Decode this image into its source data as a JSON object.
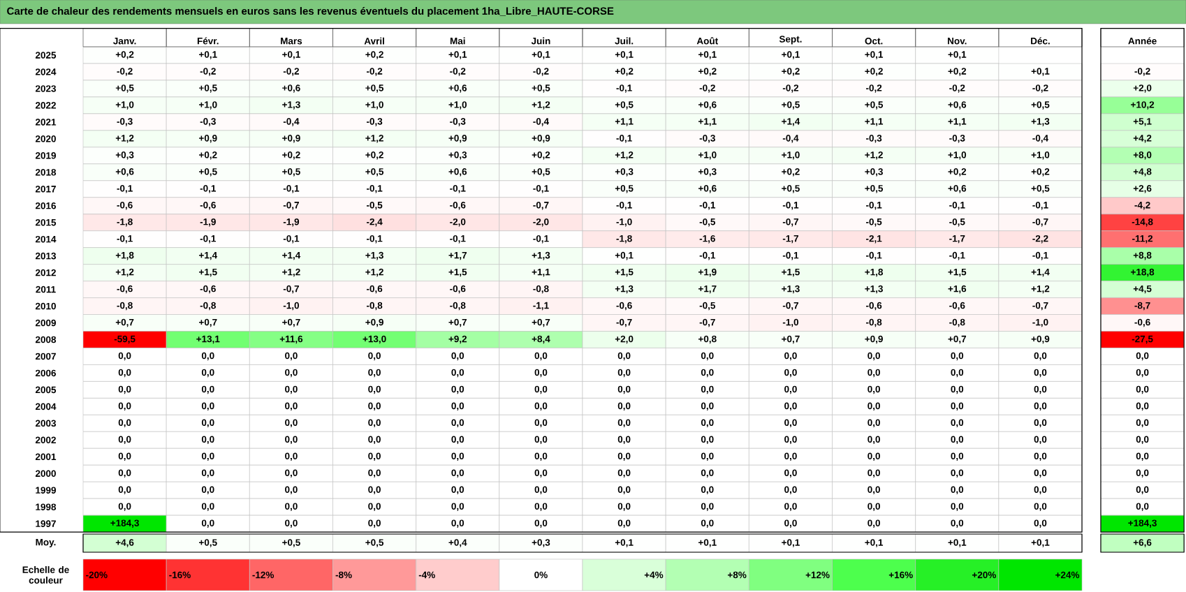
{
  "chart_data": [
    {
      "type": "heatmap",
      "title": "Carte de chaleur des rendements mensuels en euros sans les revenus éventuels du placement 1ha_Libre_HAUTE-CORSE",
      "categories": [
        "Janv.",
        "Févr.",
        "Mars",
        "Avril",
        "Mai",
        "Juin",
        "Juil.",
        "Août",
        "Sept.",
        "Oct.",
        "Nov.",
        "Déc.",
        "Année"
      ],
      "y_categories": [
        "2025",
        "2024",
        "2023",
        "2022",
        "2021",
        "2020",
        "2019",
        "2018",
        "2017",
        "2016",
        "2015",
        "2014",
        "2013",
        "2012",
        "2011",
        "2010",
        "2009",
        "2008",
        "2007",
        "2006",
        "2005",
        "2004",
        "2003",
        "2002",
        "2001",
        "2000",
        "1999",
        "1998",
        "1997"
      ],
      "cells": [
        [
          0.2,
          0.1,
          0.1,
          0.2,
          0.1,
          0.1,
          0.1,
          0.1,
          0.1,
          0.1,
          0.1,
          null,
          null
        ],
        [
          -0.2,
          -0.2,
          -0.2,
          -0.2,
          -0.2,
          -0.2,
          0.2,
          0.2,
          0.2,
          0.2,
          0.2,
          0.1,
          -0.2
        ],
        [
          0.5,
          0.5,
          0.6,
          0.5,
          0.6,
          0.5,
          -0.1,
          -0.2,
          -0.2,
          -0.2,
          -0.2,
          -0.2,
          2.0
        ],
        [
          1.0,
          1.0,
          1.3,
          1.0,
          1.0,
          1.2,
          0.5,
          0.6,
          0.5,
          0.5,
          0.6,
          0.5,
          10.2
        ],
        [
          -0.3,
          -0.3,
          -0.4,
          -0.3,
          -0.3,
          -0.4,
          1.1,
          1.1,
          1.4,
          1.1,
          1.1,
          1.3,
          5.1
        ],
        [
          1.2,
          0.9,
          0.9,
          1.2,
          0.9,
          0.9,
          -0.1,
          -0.3,
          -0.4,
          -0.3,
          -0.3,
          -0.4,
          4.2
        ],
        [
          0.3,
          0.2,
          0.2,
          0.2,
          0.3,
          0.2,
          1.2,
          1.0,
          1.0,
          1.2,
          1.0,
          1.0,
          8.0
        ],
        [
          0.6,
          0.5,
          0.5,
          0.5,
          0.6,
          0.5,
          0.3,
          0.3,
          0.2,
          0.3,
          0.2,
          0.2,
          4.8
        ],
        [
          -0.1,
          -0.1,
          -0.1,
          -0.1,
          -0.1,
          -0.1,
          0.5,
          0.6,
          0.5,
          0.5,
          0.6,
          0.5,
          2.6
        ],
        [
          -0.6,
          -0.6,
          -0.7,
          -0.5,
          -0.6,
          -0.7,
          -0.1,
          -0.1,
          -0.1,
          -0.1,
          -0.1,
          -0.1,
          -4.2
        ],
        [
          -1.8,
          -1.9,
          -1.9,
          -2.4,
          -2.0,
          -2.0,
          -1.0,
          -0.5,
          -0.7,
          -0.5,
          -0.5,
          -0.7,
          -14.8
        ],
        [
          -0.1,
          -0.1,
          -0.1,
          -0.1,
          -0.1,
          -0.1,
          -1.8,
          -1.6,
          -1.7,
          -2.1,
          -1.7,
          -2.2,
          -11.2
        ],
        [
          1.8,
          1.4,
          1.4,
          1.3,
          1.7,
          1.3,
          0.1,
          -0.1,
          -0.1,
          -0.1,
          -0.1,
          -0.1,
          8.8
        ],
        [
          1.2,
          1.5,
          1.2,
          1.2,
          1.5,
          1.1,
          1.5,
          1.9,
          1.5,
          1.8,
          1.5,
          1.4,
          18.8
        ],
        [
          -0.6,
          -0.6,
          -0.7,
          -0.6,
          -0.6,
          -0.8,
          1.3,
          1.7,
          1.3,
          1.3,
          1.6,
          1.2,
          4.5
        ],
        [
          -0.8,
          -0.8,
          -1.0,
          -0.8,
          -0.8,
          -1.1,
          -0.6,
          -0.5,
          -0.7,
          -0.6,
          -0.6,
          -0.7,
          -8.7
        ],
        [
          0.7,
          0.7,
          0.7,
          0.9,
          0.7,
          0.7,
          -0.7,
          -0.7,
          -1.0,
          -0.8,
          -0.8,
          -1.0,
          -0.6
        ],
        [
          -59.5,
          13.1,
          11.6,
          13.0,
          9.2,
          8.4,
          2.0,
          0.8,
          0.7,
          0.9,
          0.7,
          0.9,
          -27.5
        ],
        [
          0,
          0,
          0,
          0,
          0,
          0,
          0,
          0,
          0,
          0,
          0,
          0,
          0
        ],
        [
          0,
          0,
          0,
          0,
          0,
          0,
          0,
          0,
          0,
          0,
          0,
          0,
          0
        ],
        [
          0,
          0,
          0,
          0,
          0,
          0,
          0,
          0,
          0,
          0,
          0,
          0,
          0
        ],
        [
          0,
          0,
          0,
          0,
          0,
          0,
          0,
          0,
          0,
          0,
          0,
          0,
          0
        ],
        [
          0,
          0,
          0,
          0,
          0,
          0,
          0,
          0,
          0,
          0,
          0,
          0,
          0
        ],
        [
          0,
          0,
          0,
          0,
          0,
          0,
          0,
          0,
          0,
          0,
          0,
          0,
          0
        ],
        [
          0,
          0,
          0,
          0,
          0,
          0,
          0,
          0,
          0,
          0,
          0,
          0,
          0
        ],
        [
          0,
          0,
          0,
          0,
          0,
          0,
          0,
          0,
          0,
          0,
          0,
          0,
          0
        ],
        [
          0,
          0,
          0,
          0,
          0,
          0,
          0,
          0,
          0,
          0,
          0,
          0,
          0
        ],
        [
          0,
          0,
          0,
          0,
          0,
          0,
          0,
          0,
          0,
          0,
          0,
          0,
          0
        ],
        [
          184.3,
          0,
          0,
          0,
          0,
          0,
          0,
          0,
          0,
          0,
          0,
          0,
          184.3
        ]
      ],
      "cell_labels": [
        [
          "+0,2",
          "+0,1",
          "+0,1",
          "+0,2",
          "+0,1",
          "+0,1",
          "+0,1",
          "+0,1",
          "+0,1",
          "+0,1",
          "+0,1",
          null,
          null
        ],
        [
          "-0,2",
          "-0,2",
          "-0,2",
          "-0,2",
          "-0,2",
          "-0,2",
          "+0,2",
          "+0,2",
          "+0,2",
          "+0,2",
          "+0,2",
          "+0,1",
          "-0,2"
        ],
        [
          "+0,5",
          "+0,5",
          "+0,6",
          "+0,5",
          "+0,6",
          "+0,5",
          "-0,1",
          "-0,2",
          "-0,2",
          "-0,2",
          "-0,2",
          "-0,2",
          "+2,0"
        ],
        [
          "+1,0",
          "+1,0",
          "+1,3",
          "+1,0",
          "+1,0",
          "+1,2",
          "+0,5",
          "+0,6",
          "+0,5",
          "+0,5",
          "+0,6",
          "+0,5",
          "+10,2"
        ],
        [
          "-0,3",
          "-0,3",
          "-0,4",
          "-0,3",
          "-0,3",
          "-0,4",
          "+1,1",
          "+1,1",
          "+1,4",
          "+1,1",
          "+1,1",
          "+1,3",
          "+5,1"
        ],
        [
          "+1,2",
          "+0,9",
          "+0,9",
          "+1,2",
          "+0,9",
          "+0,9",
          "-0,1",
          "-0,3",
          "-0,4",
          "-0,3",
          "-0,3",
          "-0,4",
          "+4,2"
        ],
        [
          "+0,3",
          "+0,2",
          "+0,2",
          "+0,2",
          "+0,3",
          "+0,2",
          "+1,2",
          "+1,0",
          "+1,0",
          "+1,2",
          "+1,0",
          "+1,0",
          "+8,0"
        ],
        [
          "+0,6",
          "+0,5",
          "+0,5",
          "+0,5",
          "+0,6",
          "+0,5",
          "+0,3",
          "+0,3",
          "+0,2",
          "+0,3",
          "+0,2",
          "+0,2",
          "+4,8"
        ],
        [
          "-0,1",
          "-0,1",
          "-0,1",
          "-0,1",
          "-0,1",
          "-0,1",
          "+0,5",
          "+0,6",
          "+0,5",
          "+0,5",
          "+0,6",
          "+0,5",
          "+2,6"
        ],
        [
          "-0,6",
          "-0,6",
          "-0,7",
          "-0,5",
          "-0,6",
          "-0,7",
          "-0,1",
          "-0,1",
          "-0,1",
          "-0,1",
          "-0,1",
          "-0,1",
          "-4,2"
        ],
        [
          "-1,8",
          "-1,9",
          "-1,9",
          "-2,4",
          "-2,0",
          "-2,0",
          "-1,0",
          "-0,5",
          "-0,7",
          "-0,5",
          "-0,5",
          "-0,7",
          "-14,8"
        ],
        [
          "-0,1",
          "-0,1",
          "-0,1",
          "-0,1",
          "-0,1",
          "-0,1",
          "-1,8",
          "-1,6",
          "-1,7",
          "-2,1",
          "-1,7",
          "-2,2",
          "-11,2"
        ],
        [
          "+1,8",
          "+1,4",
          "+1,4",
          "+1,3",
          "+1,7",
          "+1,3",
          "+0,1",
          "-0,1",
          "-0,1",
          "-0,1",
          "-0,1",
          "-0,1",
          "+8,8"
        ],
        [
          "+1,2",
          "+1,5",
          "+1,2",
          "+1,2",
          "+1,5",
          "+1,1",
          "+1,5",
          "+1,9",
          "+1,5",
          "+1,8",
          "+1,5",
          "+1,4",
          "+18,8"
        ],
        [
          "-0,6",
          "-0,6",
          "-0,7",
          "-0,6",
          "-0,6",
          "-0,8",
          "+1,3",
          "+1,7",
          "+1,3",
          "+1,3",
          "+1,6",
          "+1,2",
          "+4,5"
        ],
        [
          "-0,8",
          "-0,8",
          "-1,0",
          "-0,8",
          "-0,8",
          "-1,1",
          "-0,6",
          "-0,5",
          "-0,7",
          "-0,6",
          "-0,6",
          "-0,7",
          "-8,7"
        ],
        [
          "+0,7",
          "+0,7",
          "+0,7",
          "+0,9",
          "+0,7",
          "+0,7",
          "-0,7",
          "-0,7",
          "-1,0",
          "-0,8",
          "-0,8",
          "-1,0",
          "-0,6"
        ],
        [
          "-59,5",
          "+13,1",
          "+11,6",
          "+13,0",
          "+9,2",
          "+8,4",
          "+2,0",
          "+0,8",
          "+0,7",
          "+0,9",
          "+0,7",
          "+0,9",
          "-27,5"
        ],
        [
          "0,0",
          "0,0",
          "0,0",
          "0,0",
          "0,0",
          "0,0",
          "0,0",
          "0,0",
          "0,0",
          "0,0",
          "0,0",
          "0,0",
          "0,0"
        ],
        [
          "0,0",
          "0,0",
          "0,0",
          "0,0",
          "0,0",
          "0,0",
          "0,0",
          "0,0",
          "0,0",
          "0,0",
          "0,0",
          "0,0",
          "0,0"
        ],
        [
          "0,0",
          "0,0",
          "0,0",
          "0,0",
          "0,0",
          "0,0",
          "0,0",
          "0,0",
          "0,0",
          "0,0",
          "0,0",
          "0,0",
          "0,0"
        ],
        [
          "0,0",
          "0,0",
          "0,0",
          "0,0",
          "0,0",
          "0,0",
          "0,0",
          "0,0",
          "0,0",
          "0,0",
          "0,0",
          "0,0",
          "0,0"
        ],
        [
          "0,0",
          "0,0",
          "0,0",
          "0,0",
          "0,0",
          "0,0",
          "0,0",
          "0,0",
          "0,0",
          "0,0",
          "0,0",
          "0,0",
          "0,0"
        ],
        [
          "0,0",
          "0,0",
          "0,0",
          "0,0",
          "0,0",
          "0,0",
          "0,0",
          "0,0",
          "0,0",
          "0,0",
          "0,0",
          "0,0",
          "0,0"
        ],
        [
          "0,0",
          "0,0",
          "0,0",
          "0,0",
          "0,0",
          "0,0",
          "0,0",
          "0,0",
          "0,0",
          "0,0",
          "0,0",
          "0,0",
          "0,0"
        ],
        [
          "0,0",
          "0,0",
          "0,0",
          "0,0",
          "0,0",
          "0,0",
          "0,0",
          "0,0",
          "0,0",
          "0,0",
          "0,0",
          "0,0",
          "0,0"
        ],
        [
          "0,0",
          "0,0",
          "0,0",
          "0,0",
          "0,0",
          "0,0",
          "0,0",
          "0,0",
          "0,0",
          "0,0",
          "0,0",
          "0,0",
          "0,0"
        ],
        [
          "0,0",
          "0,0",
          "0,0",
          "0,0",
          "0,0",
          "0,0",
          "0,0",
          "0,0",
          "0,0",
          "0,0",
          "0,0",
          "0,0",
          "0,0"
        ],
        [
          "+184,3",
          "0,0",
          "0,0",
          "0,0",
          "0,0",
          "0,0",
          "0,0",
          "0,0",
          "0,0",
          "0,0",
          "0,0",
          "0,0",
          "+184,3"
        ]
      ]
    },
    {
      "type": "heatmap",
      "categories": [
        null,
        null,
        null,
        null,
        null,
        null,
        null,
        null,
        null,
        null,
        null,
        null,
        null
      ],
      "y_categories": [
        "Moy."
      ],
      "cells": [
        [
          4.6,
          0.5,
          0.5,
          0.5,
          0.4,
          0.3,
          0.1,
          0.1,
          0.1,
          0.1,
          0.1,
          0.1,
          6.6
        ]
      ],
      "cell_labels": [
        [
          "+4,6",
          "+0,5",
          "+0,5",
          "+0,5",
          "+0,4",
          "+0,3",
          "+0,1",
          "+0,1",
          "+0,1",
          "+0,1",
          "+0,1",
          "+0,1",
          "+6,6"
        ]
      ],
      "tick_labels": "y"
    },
    {
      "type": "heatmap",
      "categories": [
        null,
        null,
        null,
        null,
        null,
        null,
        null,
        null,
        null,
        null,
        null,
        null
      ],
      "y_categories": [
        "Echelle de couleur"
      ],
      "cells": [
        [
          -20,
          -16,
          -12,
          -8,
          -4,
          0,
          4,
          8,
          12,
          16,
          20,
          24
        ]
      ],
      "cell_labels": [
        [
          "-20%",
          "-16%",
          "-12%",
          "-8%",
          "-4%",
          "0%",
          "+4%",
          "+8%",
          "+12%",
          "+16%",
          "+20%",
          "+24%"
        ]
      ],
      "colors": [
        "#ff0000",
        "#ff3333",
        "#ff6666",
        "#ff9999",
        "#ffcccc",
        "#ffffff",
        "#d9ffd9",
        "#b3ffb3",
        "#80ff80",
        "#4dff4d",
        "#26f026",
        "#00e600"
      ],
      "tick_labels": "y"
    }
  ]
}
